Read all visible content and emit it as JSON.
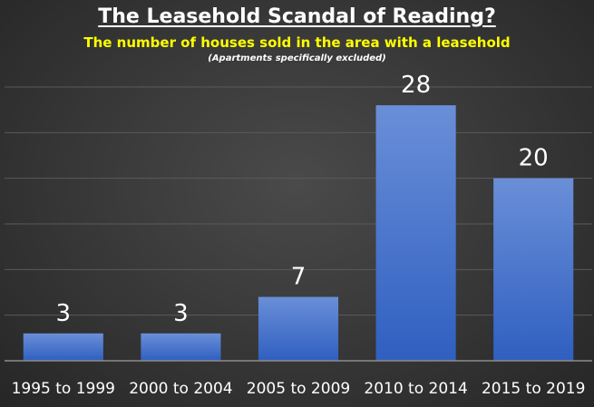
{
  "chart_data": {
    "type": "bar",
    "title": "The Leasehold Scandal of Reading?",
    "subtitle": "The number of houses sold in the area with a leasehold",
    "note": "(Apartments specifically excluded)",
    "categories": [
      "1995 to 1999",
      "2000 to 2004",
      "2005 to 2009",
      "2010 to 2014",
      "2015 to 2019"
    ],
    "values": [
      3,
      3,
      7,
      28,
      20
    ],
    "data_labels": [
      "3",
      "3",
      "7",
      "28",
      "20"
    ],
    "xlabel": "",
    "ylabel": "",
    "ylim": [
      0,
      30
    ],
    "grid": true,
    "legend": "none",
    "colors": {
      "bar_top": "#6a8fd8",
      "bar_bottom": "#2f5fc0",
      "gridline": "#5a5a5a",
      "axis": "#8c8c8c",
      "text": "#ffffff",
      "subtitle": "#ffff00"
    }
  }
}
